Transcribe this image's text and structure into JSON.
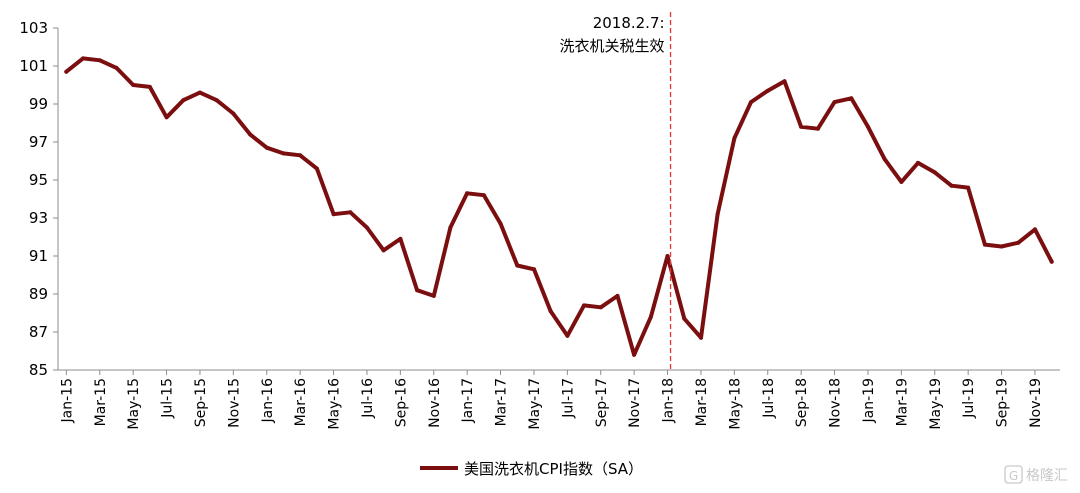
{
  "chart_data": {
    "type": "line",
    "title": "",
    "xlabel": "",
    "ylabel": "",
    "ylim": [
      85,
      103
    ],
    "yticks": [
      "103",
      "101",
      "99",
      "97",
      "95",
      "93",
      "91",
      "89",
      "87",
      "85"
    ],
    "grid": false,
    "legend_position": "bottom-center",
    "series_color": "#7b0f10",
    "annotation_color": "#e53935",
    "x": [
      "Jan-15",
      "Feb-15",
      "Mar-15",
      "Apr-15",
      "May-15",
      "Jun-15",
      "Jul-15",
      "Aug-15",
      "Sep-15",
      "Oct-15",
      "Nov-15",
      "Dec-15",
      "Jan-16",
      "Feb-16",
      "Mar-16",
      "Apr-16",
      "May-16",
      "Jun-16",
      "Jul-16",
      "Aug-16",
      "Sep-16",
      "Oct-16",
      "Nov-16",
      "Dec-16",
      "Jan-17",
      "Feb-17",
      "Mar-17",
      "Apr-17",
      "May-17",
      "Jun-17",
      "Jul-17",
      "Aug-17",
      "Sep-17",
      "Oct-17",
      "Nov-17",
      "Dec-17",
      "Jan-18",
      "Feb-18",
      "Mar-18",
      "Apr-18",
      "May-18",
      "Jun-18",
      "Jul-18",
      "Aug-18",
      "Sep-18",
      "Oct-18",
      "Nov-18",
      "Dec-18",
      "Jan-19",
      "Feb-19",
      "Mar-19",
      "Apr-19",
      "May-19",
      "Jun-19",
      "Jul-19",
      "Aug-19",
      "Sep-19",
      "Oct-19",
      "Nov-19",
      "Dec-19"
    ],
    "x_tick_labels": [
      "Jan-15",
      "Mar-15",
      "May-15",
      "Jul-15",
      "Sep-15",
      "Nov-15",
      "Jan-16",
      "Mar-16",
      "May-16",
      "Jul-16",
      "Sep-16",
      "Nov-16",
      "Jan-17",
      "Mar-17",
      "May-17",
      "Jul-17",
      "Sep-17",
      "Nov-17",
      "Jan-18",
      "Mar-18",
      "May-18",
      "Jul-18",
      "Sep-18",
      "Nov-18",
      "Jan-19",
      "Mar-19",
      "May-19",
      "Jul-19",
      "Sep-19",
      "Nov-19"
    ],
    "series": [
      {
        "name": "美国洗衣机CPI指数（SA）",
        "values": [
          100.7,
          101.4,
          101.3,
          100.9,
          100.0,
          99.9,
          98.3,
          99.2,
          99.6,
          99.2,
          98.5,
          97.4,
          96.7,
          96.4,
          96.3,
          95.6,
          93.2,
          93.3,
          92.5,
          91.3,
          91.9,
          89.2,
          88.9,
          92.5,
          94.3,
          94.2,
          92.7,
          90.5,
          90.3,
          88.1,
          86.8,
          88.4,
          88.3,
          88.9,
          85.8,
          87.8,
          91.0,
          87.7,
          86.7,
          93.2,
          97.2,
          99.1,
          99.7,
          100.2,
          97.8,
          97.7,
          99.1,
          99.3,
          97.8,
          96.1,
          94.9,
          95.9,
          95.4,
          94.7,
          94.6,
          91.6,
          91.5,
          91.7,
          92.4,
          90.7
        ]
      }
    ],
    "annotation": {
      "x": "Jan-18",
      "line1": "2018.2.7:",
      "line2": "洗衣机关税生效"
    }
  },
  "watermark": {
    "text": "格隆汇"
  }
}
